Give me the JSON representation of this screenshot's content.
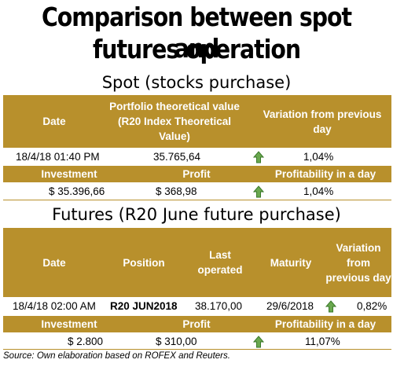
{
  "title": {
    "line1": "Comparison between spot and",
    "line2": "futures operation"
  },
  "spot": {
    "section_title": "Spot (stocks purchase)",
    "headers": {
      "date": "Date",
      "portfolio": "Portfolio theoretical value (R20 Index Theoretical Value)",
      "variation": "Variation from previous day"
    },
    "row": {
      "date": "18/4/18 01:40 PM",
      "portfolio": "35.765,64",
      "variation": "1,04%"
    },
    "sub_headers": {
      "investment": "Investment",
      "profit": "Profit",
      "profitability": "Profitability in a day"
    },
    "sub_row": {
      "investment": "$ 35.396,66",
      "profit": "$ 368,98",
      "profitability": "1,04%"
    }
  },
  "futures": {
    "section_title": "Futures (R20 June future purchase)",
    "headers": {
      "date": "Date",
      "position": "Position",
      "last_operated": "Last operated",
      "maturity": "Maturity",
      "variation": "Variation from previous day"
    },
    "row": {
      "date": "18/4/18 02:00 AM",
      "position": "R20 JUN2018",
      "last_operated": "38.170,00",
      "maturity": "29/6/2018",
      "variation": "0,82%"
    },
    "sub_headers": {
      "investment": "Investment",
      "profit": "Profit",
      "profitability": "Profitability in a day"
    },
    "sub_row": {
      "investment": "$ 2.800",
      "profit": "$ 310,00",
      "profitability": "11,07%"
    }
  },
  "source": "Source: Own elaboration based on ROFEX and Reuters.",
  "colors": {
    "header_bg": "#b8902c",
    "header_text": "#ffffff",
    "arrow_fill": "#6aa84f",
    "arrow_stroke": "#3b7a2a"
  },
  "icons": {
    "trend": "up-arrow-icon"
  }
}
